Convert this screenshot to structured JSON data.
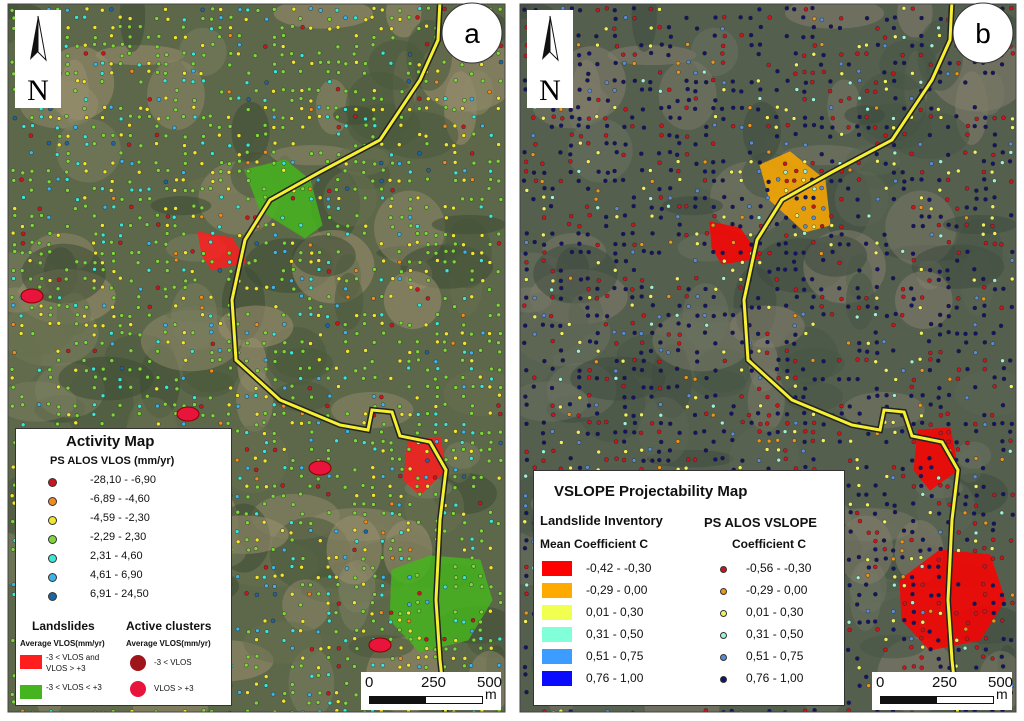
{
  "panels": [
    {
      "label": "a",
      "north": "N",
      "legend": {
        "title": "Activity Map",
        "subtitle": "PS ALOS VLOS (mm/yr)",
        "classes": [
          {
            "label": "-28,10 - -6,90",
            "color": "#c8161e"
          },
          {
            "label": "-6,89 - -4,60",
            "color": "#f08c1e"
          },
          {
            "label": "-4,59 - -2,30",
            "color": "#f0e632"
          },
          {
            "label": "-2,29 - 2,30",
            "color": "#7ed63c"
          },
          {
            "label": "2,31 - 4,60",
            "color": "#3ce6d2"
          },
          {
            "label": "4,61 - 6,90",
            "color": "#3cb4e6"
          },
          {
            "label": "6,91 - 24,50",
            "color": "#1e64a0"
          }
        ],
        "landslides": {
          "title": "Landslides",
          "subtitle": "Average VLOS(mm/yr)",
          "items": [
            {
              "label_lines": [
                "-3 < VLOS and",
                "VLOS > +3"
              ],
              "color": "#ff1e1e"
            },
            {
              "label_lines": [
                "-3 < VLOS < +3"
              ],
              "color": "#46b41e"
            }
          ]
        },
        "clusters": {
          "title": "Active clusters",
          "subtitle": "Average VLOS(mm/yr)",
          "items": [
            {
              "label": "-3 < VLOS",
              "color": "#a0141c"
            },
            {
              "label": "VLOS > +3",
              "color": "#e8143c"
            }
          ]
        }
      },
      "scale": {
        "ticks": [
          0,
          250,
          500
        ],
        "unit": "m"
      }
    },
    {
      "label": "b",
      "north": "N",
      "legend": {
        "title": "VSLOPE Projectability Map",
        "inventory": {
          "title": "Landslide Inventory",
          "subtitle": "Mean Coefficient C",
          "classes": [
            {
              "label": "-0,42 - -0,30",
              "color": "#ff0000"
            },
            {
              "label": "-0,29 - 0,00",
              "color": "#ffaa00"
            },
            {
              "label": "0,01 - 0,30",
              "color": "#f0ff50"
            },
            {
              "label": "0,31 - 0,50",
              "color": "#80ffd8"
            },
            {
              "label": "0,51 - 0,75",
              "color": "#3c9cff"
            },
            {
              "label": "0,76 - 1,00",
              "color": "#0a0aff"
            }
          ]
        },
        "ps": {
          "title": "PS ALOS VSLOPE",
          "subtitle": "Coefficient C",
          "classes": [
            {
              "label": "-0,56 - -0,30",
              "color": "#c8161e"
            },
            {
              "label": "-0,29 - 0,00",
              "color": "#e8961e"
            },
            {
              "label": "0,01 - 0,30",
              "color": "#f0f064"
            },
            {
              "label": "0,31 - 0,50",
              "color": "#a0f0d2"
            },
            {
              "label": "0,51 - 0,75",
              "color": "#5a8cd2"
            },
            {
              "label": "0,76 - 1,00",
              "color": "#141464"
            }
          ]
        }
      },
      "scale": {
        "ticks": [
          0,
          250,
          500
        ],
        "unit": "m"
      }
    }
  ]
}
